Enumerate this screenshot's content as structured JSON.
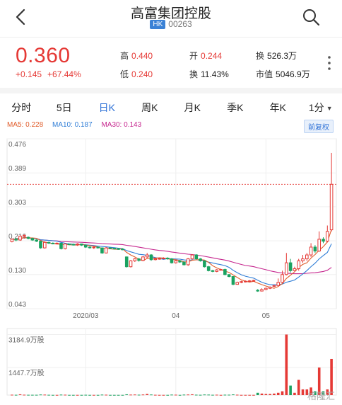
{
  "header": {
    "title": "高富集团控股",
    "market_badge": "HK",
    "code": "00263",
    "back_icon": "back-arrow-icon",
    "search_icon": "search-icon"
  },
  "quote": {
    "price": "0.360",
    "change": "+0.145",
    "change_pct": "+67.44%",
    "stats": [
      {
        "label": "高",
        "value": "0.440",
        "tone": "red"
      },
      {
        "label": "开",
        "value": "0.244",
        "tone": "red"
      },
      {
        "label": "换",
        "value": "526.3万",
        "tone": "dark"
      },
      {
        "label": "低",
        "value": "0.240",
        "tone": "red"
      },
      {
        "label": "换",
        "value": "11.43%",
        "tone": "dark"
      },
      {
        "label": "市值",
        "value": "5046.9万",
        "tone": "dark"
      }
    ]
  },
  "tabs": [
    {
      "label": "分时",
      "active": false,
      "dropdown": false
    },
    {
      "label": "5日",
      "active": false,
      "dropdown": false
    },
    {
      "label": "日K",
      "active": true,
      "dropdown": false
    },
    {
      "label": "周K",
      "active": false,
      "dropdown": false
    },
    {
      "label": "月K",
      "active": false,
      "dropdown": false
    },
    {
      "label": "季K",
      "active": false,
      "dropdown": false
    },
    {
      "label": "年K",
      "active": false,
      "dropdown": false
    },
    {
      "label": "1分",
      "active": false,
      "dropdown": true
    }
  ],
  "ma": {
    "ma5": "MA5: 0.228",
    "ma10": "MA10: 0.187",
    "ma30": "MA30: 0.143"
  },
  "adjust_label": "前复权",
  "watermark": "格隆汇",
  "colors": {
    "up": "#e53935",
    "down": "#1aa260",
    "accent": "#2b6fd6",
    "ma5": "#e05c2a",
    "ma10": "#2f7dd6",
    "ma30": "#c6288f"
  },
  "chart_data": {
    "type": "candlestick",
    "y_ticks": [
      "0.476",
      "0.389",
      "0.303",
      "0.216",
      "0.130",
      "0.043"
    ],
    "ylim": [
      0.043,
      0.476
    ],
    "x_labels": [
      "2020/03",
      "04",
      "05"
    ],
    "last_price_line": 0.36,
    "volume_ticks": [
      "3184.9万股",
      "1447.7万股"
    ],
    "volume_ylim": [
      0,
      3500
    ],
    "candles": [
      [
        0.214,
        0.22,
        0.222,
        0.212,
        20
      ],
      [
        0.22,
        0.218,
        0.223,
        0.215,
        15
      ],
      [
        0.218,
        0.228,
        0.23,
        0.216,
        40
      ],
      [
        0.228,
        0.23,
        0.232,
        0.225,
        20
      ],
      [
        0.225,
        0.222,
        0.227,
        0.22,
        15
      ],
      [
        0.222,
        0.218,
        0.224,
        0.216,
        15
      ],
      [
        0.218,
        0.215,
        0.22,
        0.213,
        15
      ],
      [
        0.215,
        0.198,
        0.216,
        0.196,
        30
      ],
      [
        0.198,
        0.212,
        0.214,
        0.196,
        25
      ],
      [
        0.212,
        0.21,
        0.214,
        0.208,
        15
      ],
      [
        0.21,
        0.209,
        0.212,
        0.207,
        10
      ],
      [
        0.209,
        0.21,
        0.212,
        0.207,
        10
      ],
      [
        0.21,
        0.196,
        0.211,
        0.194,
        25
      ],
      [
        0.196,
        0.208,
        0.21,
        0.194,
        20
      ],
      [
        0.208,
        0.207,
        0.209,
        0.205,
        10
      ],
      [
        0.207,
        0.206,
        0.209,
        0.204,
        10
      ],
      [
        0.206,
        0.208,
        0.21,
        0.203,
        10
      ],
      [
        0.208,
        0.205,
        0.209,
        0.203,
        10
      ],
      [
        0.205,
        0.2,
        0.206,
        0.198,
        15
      ],
      [
        0.2,
        0.199,
        0.202,
        0.196,
        10
      ],
      [
        0.199,
        0.2,
        0.202,
        0.195,
        10
      ],
      [
        0.2,
        0.198,
        0.201,
        0.196,
        10
      ],
      [
        0.198,
        0.185,
        0.199,
        0.183,
        25
      ],
      [
        0.185,
        0.198,
        0.2,
        0.184,
        20
      ],
      [
        0.198,
        0.197,
        0.199,
        0.195,
        10
      ],
      [
        0.197,
        0.196,
        0.198,
        0.194,
        10
      ],
      [
        0.196,
        0.195,
        0.198,
        0.193,
        10
      ],
      [
        0.195,
        0.194,
        0.197,
        0.192,
        10
      ],
      [
        0.175,
        0.15,
        0.176,
        0.148,
        40
      ],
      [
        0.15,
        0.165,
        0.167,
        0.148,
        25
      ],
      [
        0.165,
        0.17,
        0.172,
        0.162,
        30
      ],
      [
        0.17,
        0.166,
        0.172,
        0.163,
        20
      ],
      [
        0.166,
        0.175,
        0.177,
        0.164,
        30
      ],
      [
        0.175,
        0.18,
        0.185,
        0.172,
        60
      ],
      [
        0.18,
        0.168,
        0.182,
        0.165,
        30
      ],
      [
        0.168,
        0.17,
        0.172,
        0.166,
        15
      ],
      [
        0.17,
        0.171,
        0.173,
        0.168,
        10
      ],
      [
        0.171,
        0.172,
        0.174,
        0.169,
        10
      ],
      [
        0.172,
        0.17,
        0.174,
        0.168,
        10
      ],
      [
        0.17,
        0.16,
        0.172,
        0.158,
        25
      ],
      [
        0.16,
        0.165,
        0.168,
        0.158,
        20
      ],
      [
        0.165,
        0.162,
        0.167,
        0.16,
        10
      ],
      [
        0.162,
        0.155,
        0.163,
        0.153,
        25
      ],
      [
        0.155,
        0.17,
        0.172,
        0.152,
        30
      ],
      [
        0.17,
        0.18,
        0.182,
        0.168,
        40
      ],
      [
        0.18,
        0.17,
        0.182,
        0.168,
        20
      ],
      [
        0.17,
        0.165,
        0.172,
        0.163,
        15
      ],
      [
        0.165,
        0.15,
        0.166,
        0.148,
        30
      ],
      [
        0.15,
        0.14,
        0.152,
        0.138,
        25
      ],
      [
        0.14,
        0.138,
        0.142,
        0.136,
        15
      ],
      [
        0.138,
        0.142,
        0.144,
        0.136,
        20
      ],
      [
        0.142,
        0.143,
        0.145,
        0.14,
        10
      ],
      [
        0.143,
        0.13,
        0.145,
        0.128,
        20
      ],
      [
        0.13,
        0.125,
        0.131,
        0.123,
        20
      ],
      [
        0.125,
        0.105,
        0.126,
        0.103,
        35
      ],
      [
        0.105,
        0.11,
        0.112,
        0.104,
        20
      ],
      [
        0.11,
        0.112,
        0.114,
        0.108,
        10
      ],
      [
        0.112,
        0.113,
        0.115,
        0.11,
        10
      ],
      [
        0.113,
        0.114,
        0.116,
        0.111,
        10
      ],
      [
        0.114,
        0.115,
        0.117,
        0.112,
        10
      ],
      [
        0.09,
        0.088,
        0.093,
        0.086,
        120
      ],
      [
        0.088,
        0.092,
        0.095,
        0.087,
        80
      ],
      [
        0.092,
        0.095,
        0.097,
        0.09,
        60
      ],
      [
        0.095,
        0.098,
        0.1,
        0.093,
        60
      ],
      [
        0.1,
        0.102,
        0.104,
        0.098,
        80
      ],
      [
        0.102,
        0.11,
        0.12,
        0.1,
        120
      ],
      [
        0.11,
        0.13,
        0.14,
        0.108,
        200
      ],
      [
        0.13,
        0.16,
        0.185,
        0.128,
        3184.9
      ],
      [
        0.16,
        0.14,
        0.17,
        0.135,
        500
      ],
      [
        0.14,
        0.145,
        0.15,
        0.138,
        120
      ],
      [
        0.145,
        0.165,
        0.17,
        0.14,
        800
      ],
      [
        0.165,
        0.17,
        0.18,
        0.16,
        300
      ],
      [
        0.17,
        0.18,
        0.185,
        0.165,
        300
      ],
      [
        0.18,
        0.2,
        0.21,
        0.175,
        400
      ],
      [
        0.2,
        0.19,
        0.205,
        0.185,
        200
      ],
      [
        0.19,
        0.22,
        0.24,
        0.188,
        1447.7
      ],
      [
        0.22,
        0.215,
        0.225,
        0.21,
        200
      ],
      [
        0.215,
        0.24,
        0.255,
        0.212,
        300
      ],
      [
        0.244,
        0.36,
        0.44,
        0.24,
        1900
      ]
    ]
  }
}
